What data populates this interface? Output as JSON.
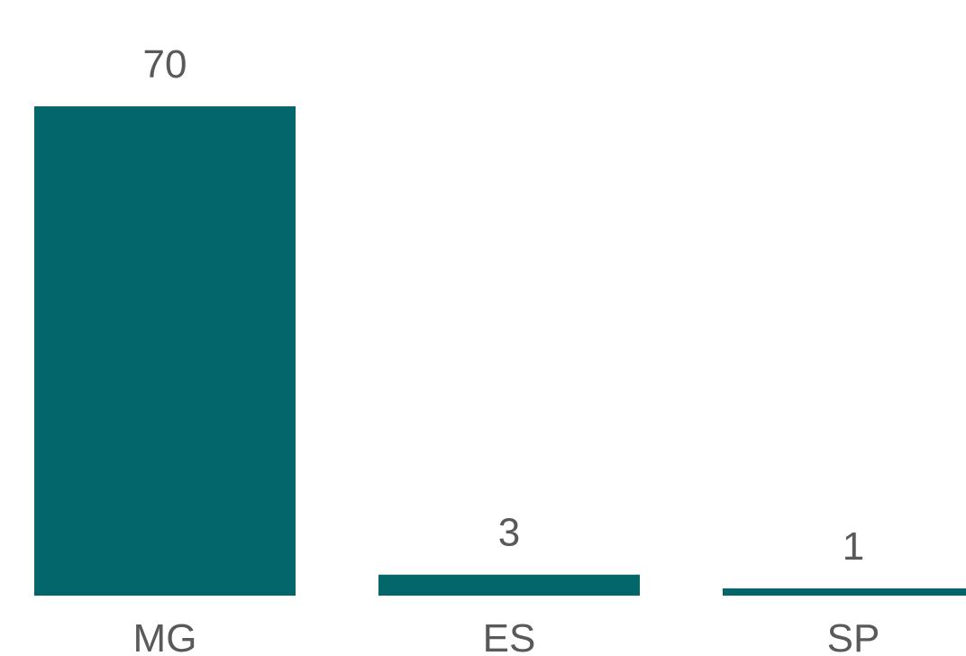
{
  "chart_data": {
    "type": "bar",
    "categories": [
      "MG",
      "ES",
      "SP"
    ],
    "values": [
      70,
      3,
      1
    ],
    "data_labels": [
      "70",
      "3",
      "1"
    ],
    "bar_color": "#03666B",
    "ylim": [
      0,
      70
    ],
    "grid": false,
    "legend": "none"
  }
}
